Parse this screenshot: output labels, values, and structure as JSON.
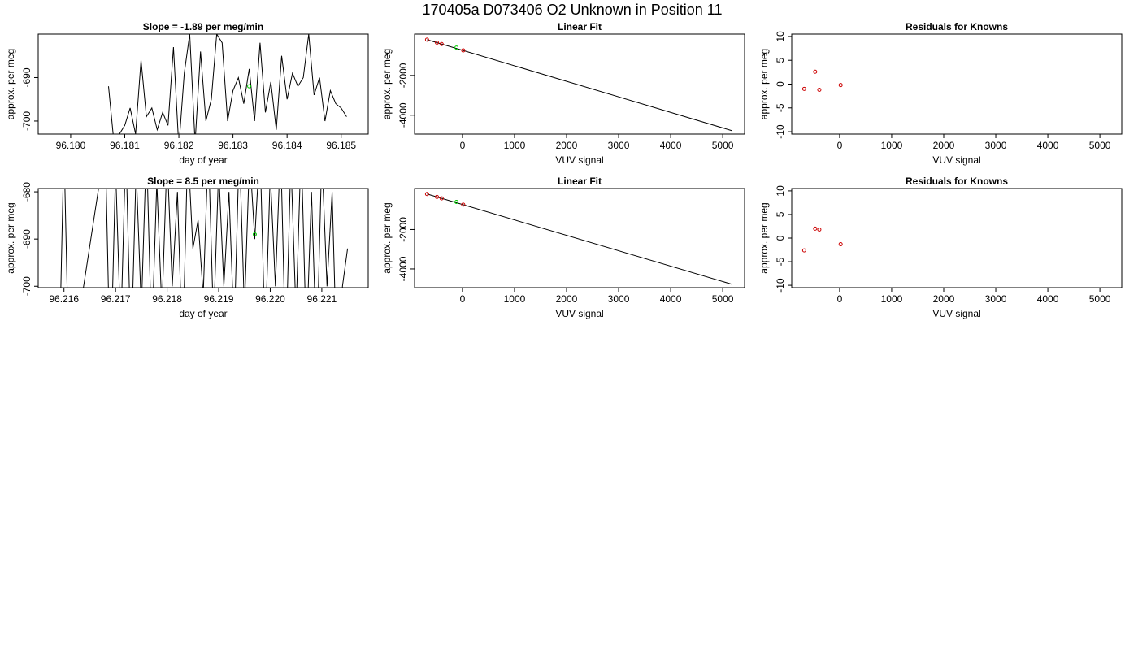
{
  "suptitle": "170405a     D073406   O2 Unknown in Position  11",
  "chart_data": [
    {
      "id": "ts1",
      "type": "line",
      "title": "Slope =  -1.89  per meg/min",
      "xlabel": "day of year",
      "ylabel": "approx. per meg",
      "xlim": [
        96.1794,
        96.1855
      ],
      "ylim": [
        -703,
        -680
      ],
      "xticks": [
        96.18,
        96.181,
        96.182,
        96.183,
        96.184,
        96.185
      ],
      "xtick_labels": [
        "96.180",
        "96.181",
        "96.182",
        "96.183",
        "96.184",
        "96.185"
      ],
      "yticks": [
        -700,
        -690
      ],
      "ytick_labels": [
        "-700",
        "-690"
      ],
      "series": [
        {
          "color": "#000000",
          "x": [
            96.1807,
            96.1808,
            96.181,
            96.1811,
            96.1812,
            96.1813,
            96.1814,
            96.1815,
            96.1816,
            96.1817,
            96.1818,
            96.1819,
            96.182,
            96.1821,
            96.1822,
            96.1823,
            96.1824,
            96.1825,
            96.1826,
            96.1827,
            96.1828,
            96.1829,
            96.183,
            96.1831,
            96.1832,
            96.1833,
            96.1834,
            96.1835,
            96.1836,
            96.1837,
            96.1838,
            96.1839,
            96.184,
            96.1841,
            96.1842,
            96.1843,
            96.1844,
            96.1845,
            96.1846,
            96.1847,
            96.1848,
            96.1849,
            96.185,
            96.1851
          ],
          "y": [
            -692,
            -705,
            -701,
            -697,
            -703,
            -686,
            -699,
            -697,
            -702,
            -698,
            -701,
            -683,
            -706,
            -689,
            -680,
            -705,
            -684,
            -700,
            -695,
            -680,
            -682,
            -700,
            -693,
            -690,
            -696,
            -688,
            -700,
            -682,
            -698,
            -691,
            -702,
            -685,
            -695,
            -689,
            -692,
            -690,
            -680,
            -694,
            -690,
            -700,
            -693,
            -696,
            -697,
            -699
          ]
        }
      ],
      "markers": [
        {
          "x": 96.1833,
          "y": -692,
          "color": "#00cc00"
        }
      ]
    },
    {
      "id": "fit1",
      "type": "line",
      "title": "Linear Fit",
      "xlabel": "VUV signal",
      "ylabel": "approx. per meg",
      "xlim": [
        -920,
        5420
      ],
      "ylim": [
        -4950,
        80
      ],
      "xticks": [
        0,
        1000,
        2000,
        3000,
        4000,
        5000
      ],
      "xtick_labels": [
        "0",
        "1000",
        "2000",
        "3000",
        "4000",
        "5000"
      ],
      "yticks": [
        -4000,
        -2000
      ],
      "ytick_labels": [
        "-4000",
        "-2000"
      ],
      "fit_line": {
        "x": [
          -680,
          5180
        ],
        "y": [
          -200,
          -4780
        ]
      },
      "known_points": {
        "x": [
          -680,
          -490,
          -400,
          15
        ],
        "y": [
          -200,
          -349,
          -420,
          -740
        ],
        "color": "#cc0000"
      },
      "unknown_point": {
        "x": -115,
        "y": -600,
        "color": "#00cc00"
      }
    },
    {
      "id": "res1",
      "type": "scatter",
      "title": "Residuals for Knowns",
      "xlabel": "VUV signal",
      "ylabel": "approx. per meg",
      "xlim": [
        -920,
        5420
      ],
      "ylim": [
        -10.5,
        10.5
      ],
      "xticks": [
        0,
        1000,
        2000,
        3000,
        4000,
        5000
      ],
      "xtick_labels": [
        "0",
        "1000",
        "2000",
        "3000",
        "4000",
        "5000"
      ],
      "yticks": [
        -10,
        -5,
        0,
        5,
        10
      ],
      "ytick_labels": [
        "-10",
        "-5",
        "0",
        "5",
        "10"
      ],
      "points": {
        "x": [
          -680,
          -470,
          -390,
          20
        ],
        "y": [
          -1.0,
          2.6,
          -1.2,
          -0.2
        ],
        "color": "#cc0000"
      }
    },
    {
      "id": "ts2",
      "type": "line",
      "title": "Slope =  8.5  per meg/min",
      "xlabel": "day of year",
      "ylabel": "approx. per meg",
      "xlim": [
        96.2155,
        96.2219
      ],
      "ylim": [
        -700.3,
        -679.3
      ],
      "xticks": [
        96.216,
        96.217,
        96.218,
        96.219,
        96.22,
        96.221
      ],
      "xtick_labels": [
        "96.216",
        "96.217",
        "96.218",
        "96.219",
        "96.220",
        "96.221"
      ],
      "yticks": [
        -700,
        -690,
        -680
      ],
      "ytick_labels": [
        "-700",
        "-690",
        "-680"
      ],
      "series": [
        {
          "color": "#000000",
          "x": [
            96.2159,
            96.216,
            96.2161,
            96.2168,
            96.2169,
            96.217,
            96.2171,
            96.2172,
            96.2173,
            96.2174,
            96.2175,
            96.2176,
            96.2177,
            96.2178,
            96.2179,
            96.218,
            96.2181,
            96.2182,
            96.2183,
            96.2184,
            96.2185,
            96.2186,
            96.2187,
            96.2188,
            96.2189,
            96.219,
            96.2191,
            96.2192,
            96.2193,
            96.2194,
            96.2195,
            96.2196,
            96.2197,
            96.2198,
            96.2199,
            96.22,
            96.2201,
            96.2202,
            96.2203,
            96.2204,
            96.2205,
            96.2206,
            96.2207,
            96.2208,
            96.2209,
            96.221,
            96.2211,
            96.2212,
            96.2213,
            96.2214,
            96.2215
          ],
          "y": [
            -720,
            -670,
            -720,
            -670,
            -720,
            -675,
            -710,
            -670,
            -715,
            -675,
            -705,
            -670,
            -712,
            -678,
            -705,
            -672,
            -700,
            -680,
            -715,
            -670,
            -692,
            -686,
            -702,
            -670,
            -708,
            -675,
            -700,
            -680,
            -710,
            -670,
            -705,
            -672,
            -690,
            -670,
            -712,
            -676,
            -700,
            -670,
            -715,
            -673,
            -706,
            -670,
            -712,
            -680,
            -715,
            -672,
            -700,
            -680,
            -720,
            -700,
            -692
          ]
        }
      ],
      "markers": [
        {
          "x": 96.2197,
          "y": -689,
          "color": "#00cc00"
        }
      ]
    },
    {
      "id": "fit2",
      "type": "line",
      "title": "Linear Fit",
      "xlabel": "VUV signal",
      "ylabel": "approx. per meg",
      "xlim": [
        -920,
        5420
      ],
      "ylim": [
        -4950,
        80
      ],
      "xticks": [
        0,
        1000,
        2000,
        3000,
        4000,
        5000
      ],
      "xtick_labels": [
        "0",
        "1000",
        "2000",
        "3000",
        "4000",
        "5000"
      ],
      "yticks": [
        -4000,
        -2000
      ],
      "ytick_labels": [
        "-4000",
        "-2000"
      ],
      "fit_line": {
        "x": [
          -680,
          5180
        ],
        "y": [
          -200,
          -4780
        ]
      },
      "known_points": {
        "x": [
          -680,
          -490,
          -400,
          15
        ],
        "y": [
          -200,
          -349,
          -420,
          -740
        ],
        "color": "#cc0000"
      },
      "unknown_point": {
        "x": -115,
        "y": -600,
        "color": "#00cc00"
      }
    },
    {
      "id": "res2",
      "type": "scatter",
      "title": "Residuals for Knowns",
      "xlabel": "VUV signal",
      "ylabel": "approx. per meg",
      "xlim": [
        -920,
        5420
      ],
      "ylim": [
        -10.5,
        10.5
      ],
      "xticks": [
        0,
        1000,
        2000,
        3000,
        4000,
        5000
      ],
      "xtick_labels": [
        "0",
        "1000",
        "2000",
        "3000",
        "4000",
        "5000"
      ],
      "yticks": [
        -10,
        -5,
        0,
        5,
        10
      ],
      "ytick_labels": [
        "-10",
        "-5",
        "0",
        "5",
        "10"
      ],
      "points": {
        "x": [
          -680,
          -470,
          -390,
          20
        ],
        "y": [
          -2.6,
          2.0,
          1.8,
          -1.3
        ],
        "color": "#cc0000"
      }
    }
  ]
}
